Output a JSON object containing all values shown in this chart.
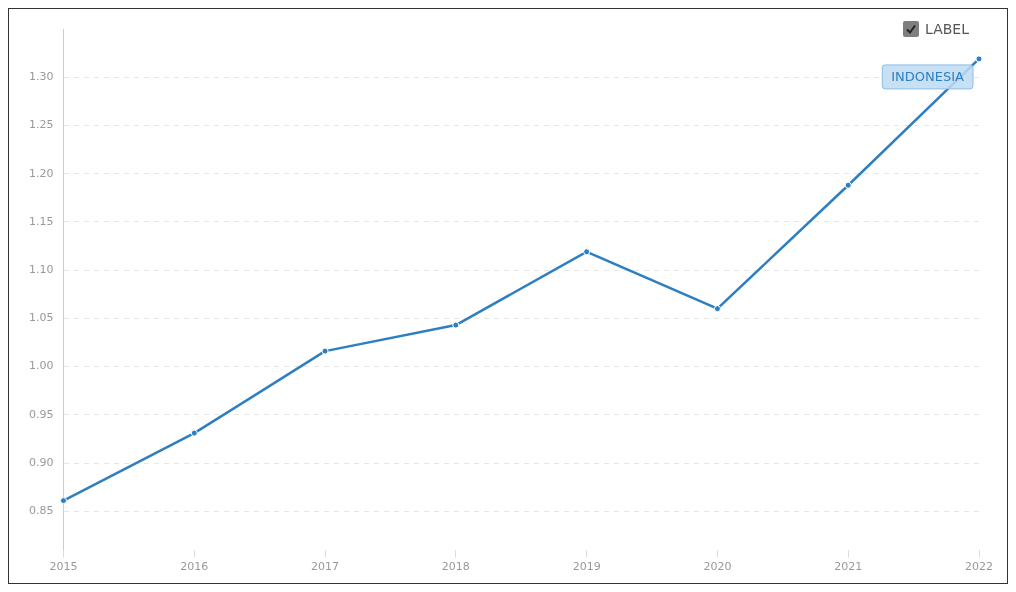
{
  "chart_data": {
    "type": "line",
    "categories": [
      "2015",
      "2016",
      "2017",
      "2018",
      "2019",
      "2020",
      "2021",
      "2022"
    ],
    "series": [
      {
        "name": "INDONESIA",
        "color": "#2e7fc1",
        "values": [
          0.861,
          0.931,
          1.016,
          1.043,
          1.119,
          1.06,
          1.188,
          1.319
        ]
      }
    ],
    "ylim": [
      0.81,
      1.35
    ],
    "yticks": [
      {
        "value": 0.85,
        "label": "0.85"
      },
      {
        "value": 0.9,
        "label": "0.90"
      },
      {
        "value": 0.95,
        "label": "0.95"
      },
      {
        "value": 1.0,
        "label": "1.00"
      },
      {
        "value": 1.05,
        "label": "1.05"
      },
      {
        "value": 1.1,
        "label": "1.10"
      },
      {
        "value": 1.15,
        "label": "1.15"
      },
      {
        "value": 1.2,
        "label": "1.20"
      },
      {
        "value": 1.25,
        "label": "1.25"
      },
      {
        "value": 1.3,
        "label": "1.30"
      }
    ],
    "grid": "y",
    "marker": "circle",
    "line_style": "solid",
    "annotations": [
      "LABEL"
    ]
  }
}
